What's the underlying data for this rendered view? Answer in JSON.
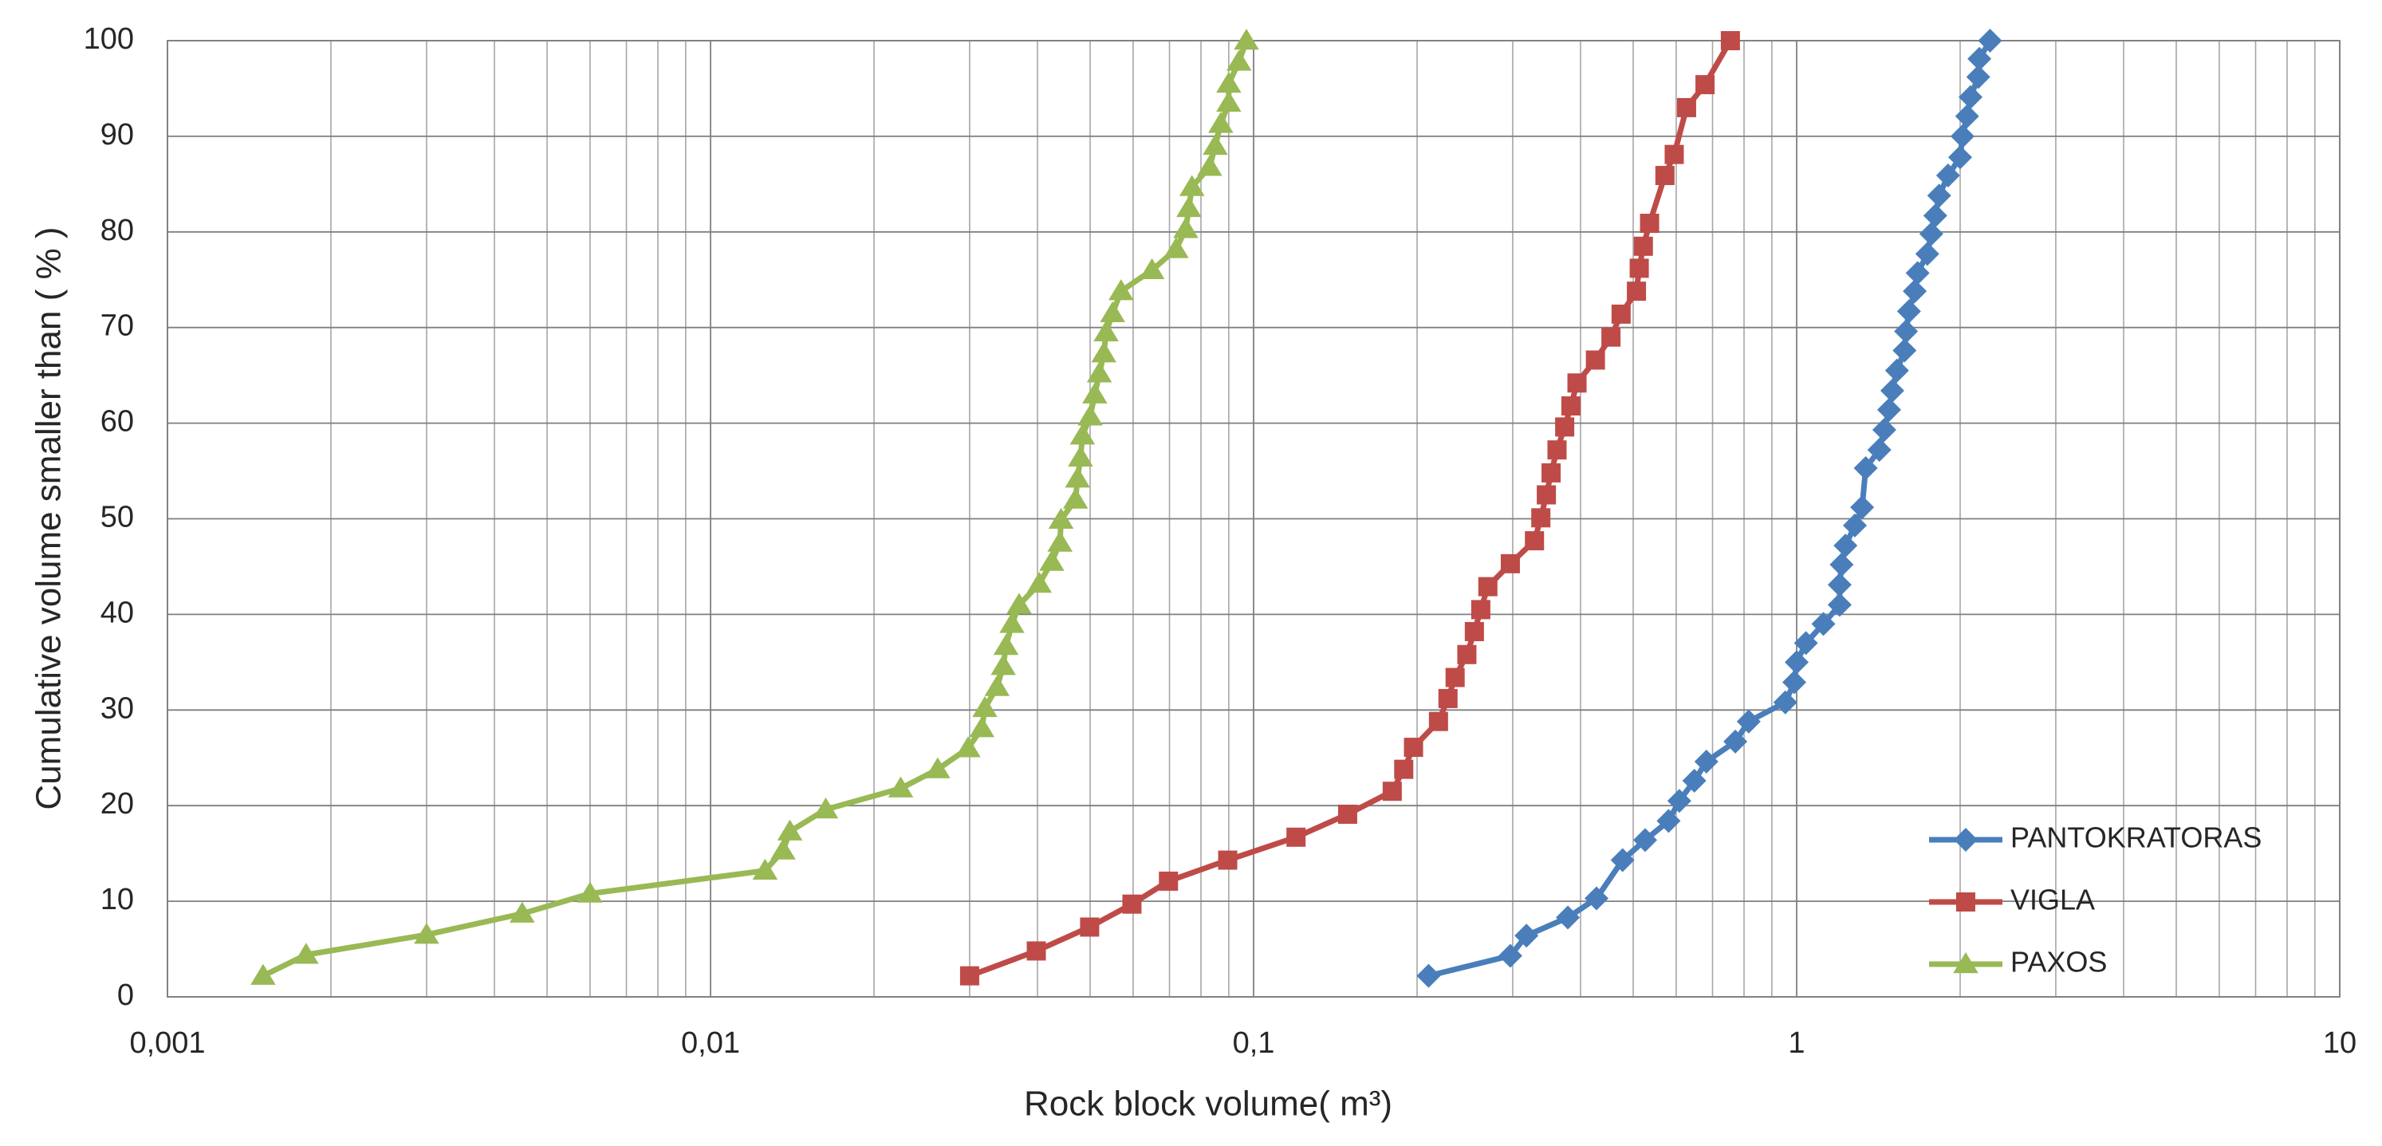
{
  "chart_data": {
    "type": "line",
    "xlabel": "Rock block volume( m³)",
    "ylabel": "Cumulative volume smaller than ( % )",
    "xscale": "log",
    "xlim": [
      0.001,
      10
    ],
    "ylim": [
      0,
      100
    ],
    "xticks": [
      {
        "value": 0.001,
        "label": "0,001"
      },
      {
        "value": 0.01,
        "label": "0,01"
      },
      {
        "value": 0.1,
        "label": "0,1"
      },
      1,
      10
    ],
    "yticks": [
      0,
      10,
      20,
      30,
      40,
      50,
      60,
      70,
      80,
      90,
      100
    ],
    "grid": true,
    "minor_grid": true,
    "legend": "lower right",
    "series": [
      {
        "name": "PANTOKRATORAS",
        "color": "#4a7ebb",
        "marker": "diamond",
        "x": [
          0.21,
          0.297,
          0.318,
          0.379,
          0.428,
          0.478,
          0.526,
          0.581,
          0.608,
          0.648,
          0.682,
          0.771,
          0.816,
          0.953,
          0.99,
          1.0,
          1.04,
          1.12,
          1.2,
          1.2,
          1.21,
          1.23,
          1.28,
          1.32,
          1.34,
          1.42,
          1.45,
          1.48,
          1.5,
          1.53,
          1.58,
          1.59,
          1.61,
          1.65,
          1.67,
          1.74,
          1.77,
          1.8,
          1.83,
          1.9,
          2.0,
          2.02,
          2.06,
          2.09,
          2.16,
          2.17,
          2.27
        ],
        "values": [
          2.2,
          4.3,
          6.4,
          8.3,
          10.3,
          14.3,
          16.4,
          18.4,
          20.5,
          22.6,
          24.6,
          26.7,
          28.8,
          30.8,
          32.9,
          35,
          37,
          39,
          41,
          43.1,
          45.2,
          47.2,
          49.3,
          51.2,
          55.3,
          57.2,
          59.3,
          61.4,
          63.4,
          65.5,
          67.6,
          69.6,
          71.7,
          73.8,
          75.7,
          77.7,
          79.8,
          81.7,
          83.8,
          85.9,
          87.8,
          90,
          92.1,
          94.1,
          96.2,
          98.1,
          100
        ]
      },
      {
        "name": "VIGLA",
        "color": "#be4b48",
        "marker": "square",
        "x": [
          0.03,
          0.0398,
          0.0499,
          0.0597,
          0.0697,
          0.0896,
          0.1197,
          0.149,
          0.18,
          0.189,
          0.197,
          0.219,
          0.228,
          0.235,
          0.247,
          0.255,
          0.262,
          0.27,
          0.297,
          0.329,
          0.338,
          0.346,
          0.353,
          0.362,
          0.374,
          0.384,
          0.394,
          0.426,
          0.455,
          0.475,
          0.507,
          0.513,
          0.522,
          0.536,
          0.572,
          0.595,
          0.627,
          0.678,
          0.755
        ],
        "values": [
          2.2,
          4.8,
          7.3,
          9.7,
          12.1,
          14.3,
          16.7,
          19.1,
          21.5,
          23.8,
          26.1,
          28.8,
          31.2,
          33.4,
          35.8,
          38.2,
          40.5,
          42.9,
          45.3,
          47.7,
          50.1,
          52.5,
          54.8,
          57.2,
          59.6,
          61.8,
          64.2,
          66.6,
          69,
          71.4,
          73.8,
          76.2,
          78.5,
          80.9,
          85.9,
          88.1,
          93,
          95.4,
          100
        ]
      },
      {
        "name": "PAXOS",
        "color": "#98b954",
        "marker": "triangle",
        "x": [
          0.0015,
          0.0018,
          0.003,
          0.0045,
          0.006,
          0.0126,
          0.0136,
          0.014,
          0.0163,
          0.0224,
          0.0262,
          0.0298,
          0.0316,
          0.032,
          0.0337,
          0.0346,
          0.035,
          0.0359,
          0.037,
          0.0403,
          0.0425,
          0.044,
          0.0442,
          0.047,
          0.0474,
          0.048,
          0.0484,
          0.05,
          0.051,
          0.052,
          0.053,
          0.0535,
          0.055,
          0.057,
          0.065,
          0.072,
          0.075,
          0.076,
          0.077,
          0.083,
          0.085,
          0.087,
          0.09,
          0.09,
          0.094,
          0.097
        ],
        "values": [
          2.2,
          4.4,
          6.5,
          8.7,
          10.8,
          13.2,
          15.3,
          17.3,
          19.6,
          21.8,
          23.8,
          26,
          28.1,
          30.2,
          32.4,
          34.6,
          36.7,
          39,
          41,
          43.2,
          45.5,
          47.5,
          49.9,
          52,
          54.2,
          56.4,
          58.7,
          60.7,
          63,
          65.2,
          67.3,
          69.5,
          71.5,
          73.8,
          76,
          78.2,
          80.3,
          82.5,
          84.7,
          86.8,
          89,
          91.3,
          93.5,
          95.5,
          97.8,
          100
        ]
      }
    ]
  }
}
